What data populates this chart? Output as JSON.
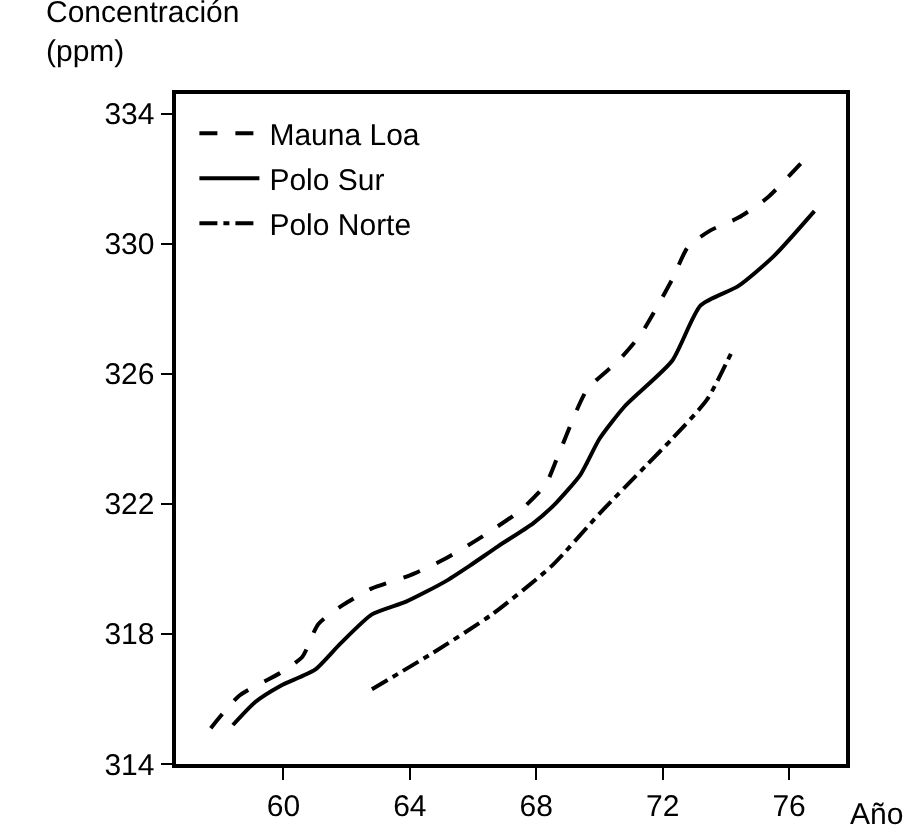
{
  "chart_data": {
    "type": "line",
    "xlabel": "Año",
    "ylabel": "Concentración\n(ppm)",
    "xlim": [
      56.6,
      77.8
    ],
    "xticks": [
      60,
      64,
      68,
      72,
      76
    ],
    "ylim": [
      314,
      334.6
    ],
    "yticks": [
      314,
      318,
      322,
      326,
      330,
      334
    ],
    "grid": false,
    "legend": "top left",
    "marker": "none",
    "series": [
      {
        "name": "Mauna Loa",
        "color": "#000000",
        "line_style": "dashed",
        "x": [
          57.7,
          58.6,
          59.9,
          60.6,
          61.1,
          61.9,
          62.8,
          64.0,
          65.1,
          66.3,
          67.5,
          68.3,
          68.7,
          69.6,
          70.6,
          71.3,
          72.3,
          72.8,
          73.5,
          74.4,
          75.3,
          76.5
        ],
        "values": [
          315.1,
          316.1,
          316.8,
          317.3,
          318.3,
          318.9,
          319.4,
          319.8,
          320.3,
          321.0,
          321.8,
          322.6,
          323.5,
          325.5,
          326.4,
          327.2,
          328.9,
          329.9,
          330.4,
          330.8,
          331.4,
          332.6
        ]
      },
      {
        "name": "Polo Sur",
        "color": "#000000",
        "line_style": "solid",
        "x": [
          58.4,
          59.1,
          59.9,
          61.0,
          61.8,
          62.8,
          63.9,
          65.1,
          65.9,
          66.8,
          67.9,
          68.6,
          69.4,
          70.0,
          70.8,
          72.3,
          73.2,
          74.4,
          75.5,
          76.8
        ],
        "values": [
          315.2,
          315.9,
          316.4,
          316.9,
          317.7,
          318.6,
          319.0,
          319.6,
          320.1,
          320.7,
          321.4,
          322.0,
          322.9,
          324.0,
          325.0,
          326.4,
          328.1,
          328.7,
          329.6,
          331.0
        ]
      },
      {
        "name": "Polo Norte",
        "color": "#000000",
        "line_style": "dashdot",
        "x": [
          62.8,
          64.7,
          66.6,
          68.5,
          70.0,
          71.5,
          72.3,
          73.4,
          74.2
        ],
        "values": [
          316.3,
          317.4,
          318.6,
          320.1,
          321.7,
          323.2,
          324.0,
          325.2,
          326.7
        ]
      }
    ]
  }
}
